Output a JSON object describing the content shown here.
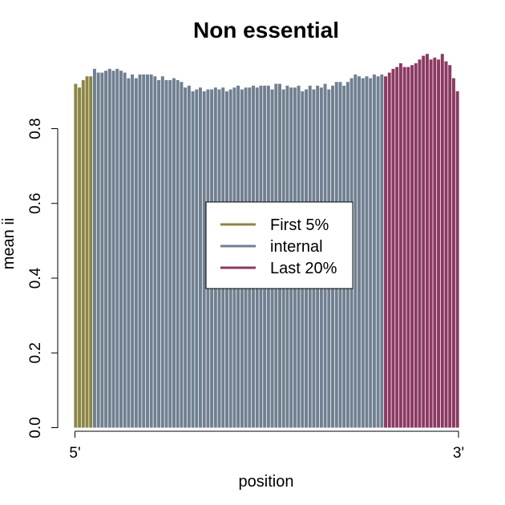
{
  "chart_data": {
    "type": "bar",
    "title": "Non essential",
    "xlabel": "position",
    "ylabel": "mean ii",
    "ylim": [
      0,
      0.96
    ],
    "yticks": [
      0.0,
      0.2,
      0.4,
      0.6,
      0.8
    ],
    "ytick_labels": [
      "0.0",
      "0.2",
      "0.4",
      "0.6",
      "0.8"
    ],
    "xtick_labels": [
      "5'",
      "3'"
    ],
    "legend": {
      "placement": "center",
      "entries": [
        {
          "label": "First 5%",
          "color": "#8b8646"
        },
        {
          "label": "internal",
          "color": "#708090"
        },
        {
          "label": "Last 20%",
          "color": "#8b3a62"
        }
      ]
    },
    "series": [
      {
        "name": "First 5%",
        "color": "#8b8646",
        "values": [
          0.92,
          0.91,
          0.93,
          0.94,
          0.94
        ]
      },
      {
        "name": "internal",
        "color": "#708090",
        "values": [
          0.96,
          0.95,
          0.95,
          0.955,
          0.96,
          0.955,
          0.96,
          0.955,
          0.95,
          0.935,
          0.945,
          0.935,
          0.945,
          0.945,
          0.945,
          0.945,
          0.94,
          0.93,
          0.94,
          0.93,
          0.93,
          0.935,
          0.93,
          0.925,
          0.91,
          0.915,
          0.9,
          0.905,
          0.91,
          0.9,
          0.905,
          0.905,
          0.91,
          0.905,
          0.91,
          0.9,
          0.905,
          0.91,
          0.915,
          0.905,
          0.91,
          0.91,
          0.915,
          0.91,
          0.915,
          0.915,
          0.915,
          0.905,
          0.92,
          0.92,
          0.905,
          0.915,
          0.91,
          0.91,
          0.915,
          0.9,
          0.905,
          0.915,
          0.905,
          0.915,
          0.91,
          0.92,
          0.905,
          0.915,
          0.925,
          0.925,
          0.915,
          0.925,
          0.935,
          0.945,
          0.94,
          0.935,
          0.94,
          0.935,
          0.945,
          0.94,
          0.945
        ]
      },
      {
        "name": "Last 20%",
        "color": "#8b3a62",
        "values": [
          0.94,
          0.95,
          0.96,
          0.965,
          0.975,
          0.965,
          0.965,
          0.97,
          0.975,
          0.985,
          0.995,
          1.0,
          0.985,
          0.99,
          0.985,
          1.0,
          0.98,
          0.97,
          0.935,
          0.9
        ]
      }
    ]
  }
}
